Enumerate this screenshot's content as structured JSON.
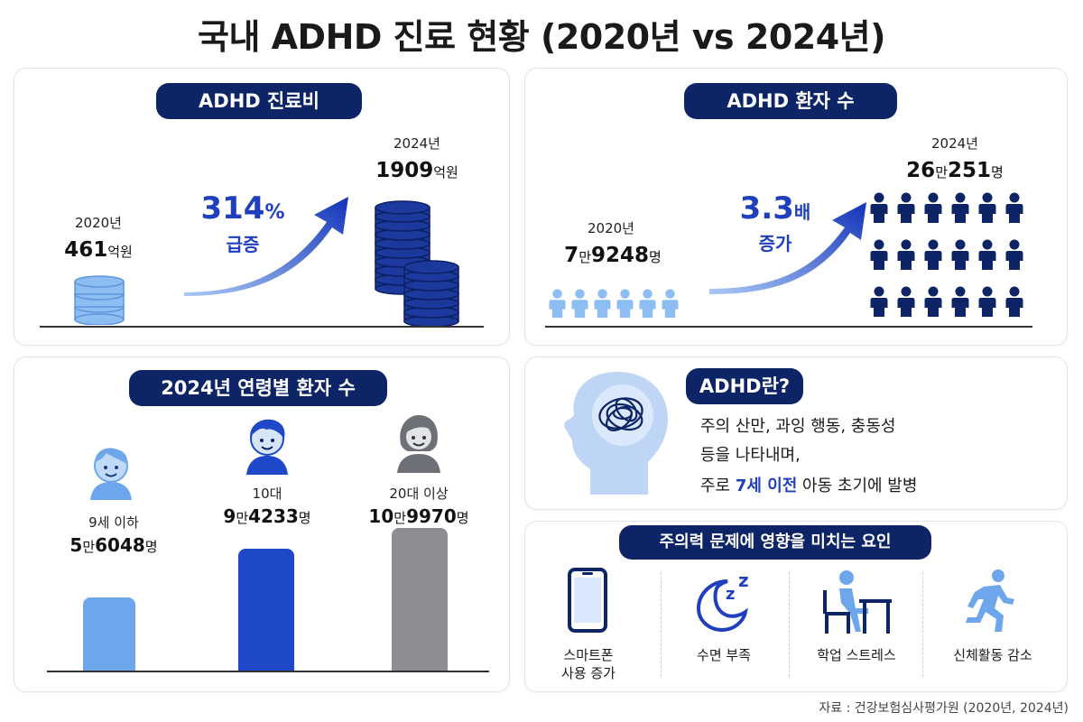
{
  "title": "국내 ADHD 진료 현황 (2020년 vs 2024년)",
  "cost": {
    "header": "ADHD 진료비",
    "y2020": "2020년",
    "v2020_num": "461",
    "v2020_unit": "억원",
    "y2024": "2024년",
    "v2024_num": "1909",
    "v2024_unit": "억원",
    "change_num": "314",
    "change_unit": "%",
    "change_label": "급증"
  },
  "patients": {
    "header": "ADHD 환자 수",
    "y2020": "2020년",
    "v2020_a": "7",
    "v2020_b": "만",
    "v2020_c": "9248",
    "v2020_d": "명",
    "y2024": "2024년",
    "v2024_a": "26",
    "v2024_b": "만",
    "v2024_c": "251",
    "v2024_d": "명",
    "change_num": "3.3",
    "change_unit": "배",
    "change_label": "증가"
  },
  "age": {
    "header": "2024년 연령별 환자 수",
    "groups": [
      {
        "label": "9세 이하",
        "a": "5",
        "b": "만",
        "c": "6048",
        "d": "명",
        "value": 56048,
        "color": "#6ea6ec"
      },
      {
        "label": "10대",
        "a": "9",
        "b": "만",
        "c": "4233",
        "d": "명",
        "value": 94233,
        "color": "#1f48c8"
      },
      {
        "label": "20대 이상",
        "a": "10",
        "b": "만",
        "c": "9970",
        "d": "명",
        "value": 109970,
        "color": "#8c8e93"
      }
    ]
  },
  "about": {
    "header": "ADHD란?",
    "line1": "주의 산만, 과잉 행동, 충동성",
    "line2": "등을 나타내며,",
    "line3_pre": "주로 ",
    "line3_hl": "7세 이전",
    "line3_post": " 아동 초기에 발병"
  },
  "factors": {
    "header": "주의력 문제에 영향을 미치는 요인",
    "items": [
      {
        "icon": "smartphone-icon",
        "line1": "스마트폰",
        "line2": "사용 증가"
      },
      {
        "icon": "moon-sleep-icon",
        "line1": "수면 부족",
        "line2": ""
      },
      {
        "icon": "study-desk-icon",
        "line1": "학업 스트레스",
        "line2": ""
      },
      {
        "icon": "running-person-icon",
        "line1": "신체활동 감소",
        "line2": ""
      }
    ]
  },
  "source": "자료 : 건강보험심사평가원 (2020년, 2024년)",
  "colors": {
    "navy": "#0d2466",
    "accent": "#1f3fbf",
    "light": "#6ea6ec",
    "mid": "#1f48c8",
    "gray": "#8c8e93"
  }
}
